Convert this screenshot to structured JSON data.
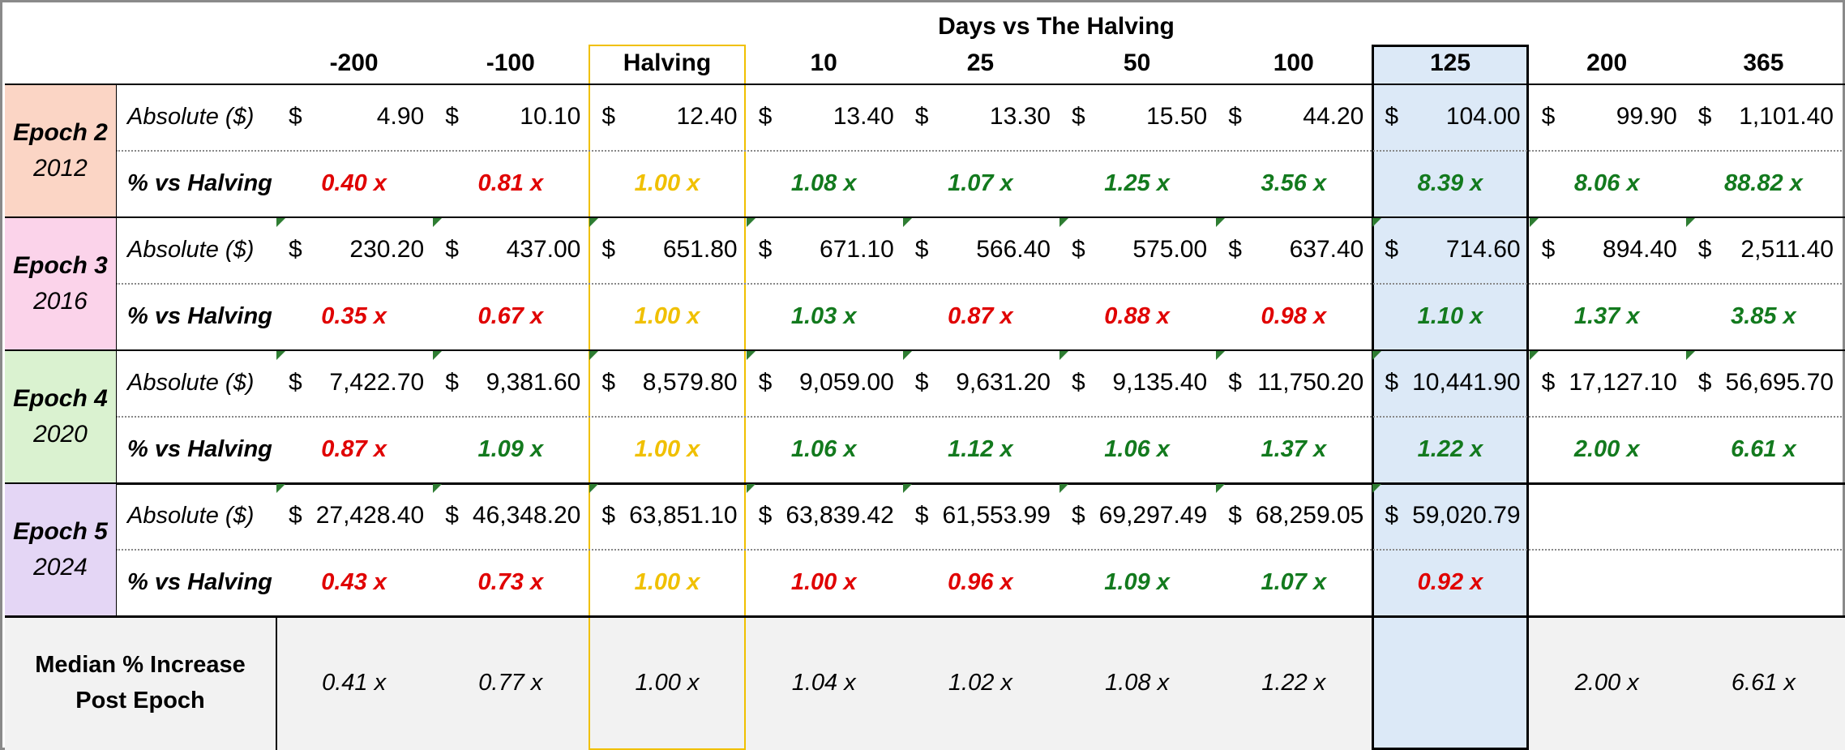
{
  "title": "Days vs The Halving",
  "columns": [
    "-200",
    "-100",
    "Halving",
    "10",
    "25",
    "50",
    "100",
    "125",
    "200",
    "365"
  ],
  "row_labels": {
    "absolute": "Absolute ($)",
    "pct": "% vs Halving"
  },
  "currency_symbol": "$",
  "epochs": [
    {
      "name": "Epoch 2",
      "year": "2012",
      "color": "#fbd5c5",
      "absolute": [
        "4.90",
        "10.10",
        "12.40",
        "13.40",
        "13.30",
        "15.50",
        "44.20",
        "104.00",
        "99.90",
        "1,101.40"
      ],
      "pct": [
        {
          "v": "0.40 x",
          "c": "red"
        },
        {
          "v": "0.81 x",
          "c": "red"
        },
        {
          "v": "1.00 x",
          "c": "yellow"
        },
        {
          "v": "1.08 x",
          "c": "green"
        },
        {
          "v": "1.07 x",
          "c": "green"
        },
        {
          "v": "1.25 x",
          "c": "green"
        },
        {
          "v": "3.56 x",
          "c": "green"
        },
        {
          "v": "8.39 x",
          "c": "green"
        },
        {
          "v": "8.06 x",
          "c": "green"
        },
        {
          "v": "88.82 x",
          "c": "green"
        }
      ]
    },
    {
      "name": "Epoch 3",
      "year": "2016",
      "color": "#fbd3ea",
      "absolute": [
        "230.20",
        "437.00",
        "651.80",
        "671.10",
        "566.40",
        "575.00",
        "637.40",
        "714.60",
        "894.40",
        "2,511.40"
      ],
      "pct": [
        {
          "v": "0.35 x",
          "c": "red"
        },
        {
          "v": "0.67 x",
          "c": "red"
        },
        {
          "v": "1.00 x",
          "c": "yellow"
        },
        {
          "v": "1.03 x",
          "c": "green"
        },
        {
          "v": "0.87 x",
          "c": "red"
        },
        {
          "v": "0.88 x",
          "c": "red"
        },
        {
          "v": "0.98 x",
          "c": "red"
        },
        {
          "v": "1.10 x",
          "c": "green"
        },
        {
          "v": "1.37 x",
          "c": "green"
        },
        {
          "v": "3.85 x",
          "c": "green"
        }
      ]
    },
    {
      "name": "Epoch 4",
      "year": "2020",
      "color": "#daf2d0",
      "absolute": [
        "7,422.70",
        "9,381.60",
        "8,579.80",
        "9,059.00",
        "9,631.20",
        "9,135.40",
        "11,750.20",
        "10,441.90",
        "17,127.10",
        "56,695.70"
      ],
      "pct": [
        {
          "v": "0.87 x",
          "c": "red"
        },
        {
          "v": "1.09 x",
          "c": "green"
        },
        {
          "v": "1.00 x",
          "c": "yellow"
        },
        {
          "v": "1.06 x",
          "c": "green"
        },
        {
          "v": "1.12 x",
          "c": "green"
        },
        {
          "v": "1.06 x",
          "c": "green"
        },
        {
          "v": "1.37 x",
          "c": "green"
        },
        {
          "v": "1.22 x",
          "c": "green"
        },
        {
          "v": "2.00 x",
          "c": "green"
        },
        {
          "v": "6.61 x",
          "c": "green"
        }
      ]
    },
    {
      "name": "Epoch 5",
      "year": "2024",
      "color": "#e4d6f5",
      "absolute": [
        "27,428.40",
        "46,348.20",
        "63,851.10",
        "63,839.42",
        "61,553.99",
        "69,297.49",
        "68,259.05",
        "59,020.79",
        "",
        ""
      ],
      "pct": [
        {
          "v": "0.43 x",
          "c": "red"
        },
        {
          "v": "0.73 x",
          "c": "red"
        },
        {
          "v": "1.00 x",
          "c": "yellow"
        },
        {
          "v": "1.00 x",
          "c": "red"
        },
        {
          "v": "0.96 x",
          "c": "red"
        },
        {
          "v": "1.09 x",
          "c": "green"
        },
        {
          "v": "1.07 x",
          "c": "green"
        },
        {
          "v": "0.92 x",
          "c": "red"
        },
        {
          "v": "",
          "c": "green"
        },
        {
          "v": "",
          "c": "green"
        }
      ]
    }
  ],
  "median": {
    "label_line1": "Median % Increase",
    "label_line2": "Post Epoch",
    "values": [
      "0.41 x",
      "0.77 x",
      "1.00 x",
      "1.04 x",
      "1.02 x",
      "1.08 x",
      "1.22 x",
      "",
      "2.00 x",
      "6.61 x"
    ]
  },
  "colors": {
    "red": "#e00000",
    "green": "#137a1e",
    "yellow": "#f0c000",
    "highlight_fill": "#dce9f7",
    "halving_border": "#f0c000",
    "median_fill": "#f2f2f2"
  }
}
